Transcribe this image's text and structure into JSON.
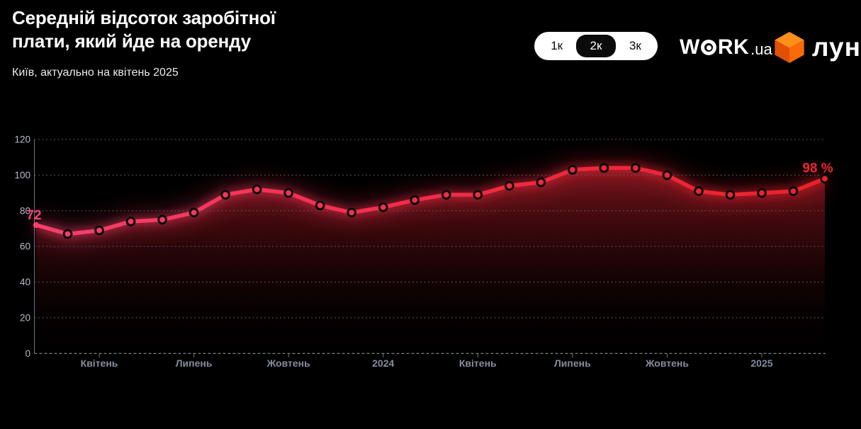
{
  "header": {
    "title_line1": "Середній відсоток заробітної",
    "title_line2": "плати, який йде на оренду",
    "subtitle": "Київ, актуально на квітень 2025"
  },
  "toggle": {
    "options": [
      "1к",
      "2к",
      "3к"
    ],
    "selected": "2к"
  },
  "logos": {
    "workua_w": "W",
    "workua_rk": "RK",
    "workua_ua": ".ua",
    "lun": "лун",
    "lun_cube_colors": {
      "top": "#ff8e1c",
      "left": "#e05106",
      "right": "#fb6a07"
    }
  },
  "chart_data": {
    "type": "line",
    "title": "Середній відсоток заробітної плати, який йде на оренду",
    "subtitle": "Київ, актуально на квітень 2025",
    "unit": "%",
    "values": [
      72,
      67,
      69,
      74,
      75,
      79,
      89,
      92,
      90,
      83,
      79,
      82,
      86,
      89,
      89,
      94,
      96,
      103,
      104,
      104,
      100,
      91,
      89,
      90,
      91,
      98
    ],
    "x_ticks": [
      {
        "index": 2,
        "label": "Квітень"
      },
      {
        "index": 5,
        "label": "Липень"
      },
      {
        "index": 8,
        "label": "Жовтень"
      },
      {
        "index": 11,
        "label": "2024"
      },
      {
        "index": 14,
        "label": "Квітень"
      },
      {
        "index": 17,
        "label": "Липень"
      },
      {
        "index": 20,
        "label": "Жовтень"
      },
      {
        "index": 23,
        "label": "2025"
      }
    ],
    "y_ticks": [
      0,
      20,
      40,
      60,
      80,
      100,
      120
    ],
    "ylim": [
      0,
      120
    ],
    "grid": true,
    "legend": false,
    "first_point_label": "72",
    "last_point_label": "98 %",
    "colors": {
      "line_start": "#f8406e",
      "line_mid": "#f22c47",
      "line_end": "#e92229",
      "dot_ring": "#0a0a0a",
      "grid": "#53575e",
      "axis": "#70757d",
      "axis_bottom": "#8a8f97",
      "y_label": "#b7bcc6",
      "x_label": "#848b9c",
      "first_label": "#f6417a",
      "last_label": "#e92630",
      "area_top": "rgba(234,40,55,0.52)",
      "area_mid": "rgba(176,26,38,0.30)",
      "area_low": "rgba(70,10,14,0.12)",
      "area_bottom": "rgba(12,2,3,0.03)"
    }
  }
}
